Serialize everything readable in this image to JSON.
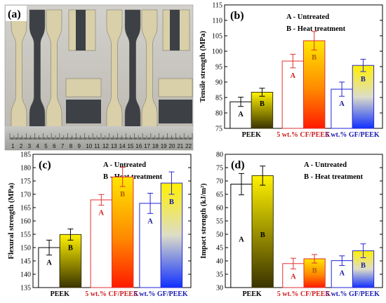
{
  "colors": {
    "a_edge": "#000000",
    "b_dark": "#3a3300",
    "b_bright": "#fff200",
    "cf_edge": "#e03030",
    "cf_top": "#ffe600",
    "cf_bottom": "#ff1a00",
    "gf_edge": "#2222dd",
    "gf_top": "#fff000",
    "gf_bottom": "#1030ff"
  },
  "panel_a": {
    "label": "(a)",
    "ruler_numbers": [
      "1",
      "2",
      "3",
      "4",
      "5",
      "6",
      "7",
      "8",
      "9",
      "10",
      "11",
      "12",
      "13",
      "14",
      "15",
      "16",
      "17",
      "18",
      "19",
      "20",
      "21",
      "22"
    ]
  },
  "chart_data": [
    {
      "panel": "(b)",
      "type": "bar",
      "ylabel": "Tensile strength (MPa)",
      "ylim": [
        75,
        115
      ],
      "yticks": [
        75,
        80,
        85,
        90,
        95,
        100,
        105,
        110,
        115
      ],
      "categories": [
        "PEEK",
        "5 wt.% CF/PEEK",
        "5 wt.% GF/PEEK"
      ],
      "legend": [
        "A - Untreated",
        "B - Heat treatment"
      ],
      "series": [
        {
          "name": "A - Untreated",
          "bar_label": "A",
          "values": [
            83.6,
            96.8,
            87.7
          ],
          "errors": [
            1.5,
            2.2,
            2.3
          ]
        },
        {
          "name": "B - Heat treatment",
          "bar_label": "B",
          "values": [
            86.7,
            103.4,
            95.4
          ],
          "errors": [
            1.3,
            3.0,
            2.0
          ]
        }
      ]
    },
    {
      "panel": "(c)",
      "type": "bar",
      "ylabel": "Flexural strength (MPa)",
      "ylim": [
        135,
        185
      ],
      "yticks": [
        135,
        140,
        145,
        150,
        155,
        160,
        165,
        170,
        175,
        180,
        185
      ],
      "categories": [
        "PEEK",
        "5 wt.% CF/PEEK",
        "5 wt.% GF/PEEK"
      ],
      "legend": [
        "A - Untreated",
        "B - Heat treatment"
      ],
      "series": [
        {
          "name": "A - Untreated",
          "bar_label": "A",
          "values": [
            150.0,
            167.9,
            166.6
          ],
          "errors": [
            2.8,
            2.0,
            3.8
          ]
        },
        {
          "name": "B - Heat treatment",
          "bar_label": "B",
          "values": [
            154.9,
            176.5,
            174.2
          ],
          "errors": [
            2.1,
            3.6,
            4.2
          ]
        }
      ]
    },
    {
      "panel": "(d)",
      "type": "bar",
      "ylabel": "Impact strength (kJ/m²)",
      "ylim": [
        30,
        80
      ],
      "yticks": [
        30,
        35,
        40,
        45,
        50,
        55,
        60,
        65,
        70,
        75,
        80
      ],
      "categories": [
        "PEEK",
        "5 wt.% CF/PEEK",
        "5 wt.% GF/PEEK"
      ],
      "legend": [
        "A - Untreated",
        "B - Heat treatment"
      ],
      "series": [
        {
          "name": "A - Untreated",
          "bar_label": "A",
          "values": [
            68.8,
            39.0,
            40.1
          ],
          "errors": [
            4.0,
            2.0,
            1.8
          ]
        },
        {
          "name": "B - Heat treatment",
          "bar_label": "B",
          "values": [
            72.0,
            40.8,
            43.8
          ],
          "errors": [
            3.6,
            1.6,
            2.6
          ]
        }
      ]
    }
  ]
}
